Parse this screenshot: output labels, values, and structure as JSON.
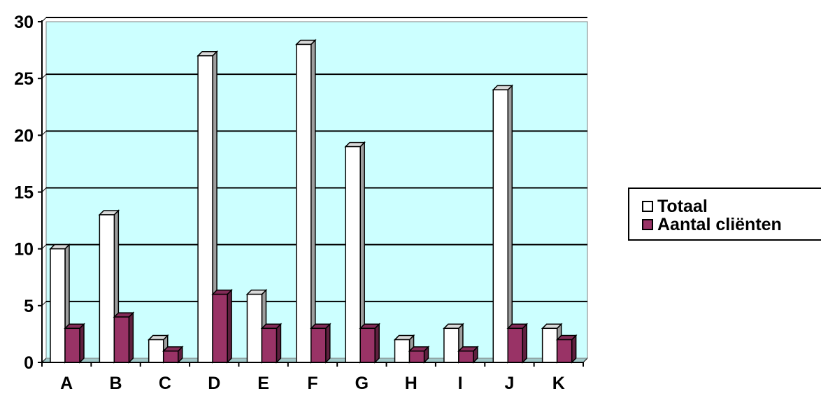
{
  "chart_data": {
    "type": "bar",
    "categories": [
      "A",
      "B",
      "C",
      "D",
      "E",
      "F",
      "G",
      "H",
      "I",
      "J",
      "K"
    ],
    "series": [
      {
        "name": "Totaal",
        "values": [
          10,
          13,
          2,
          27,
          6,
          28,
          19,
          2,
          3,
          24,
          3
        ],
        "color": "#ffffff"
      },
      {
        "name": "Aantal cliënten",
        "values": [
          3,
          4,
          1,
          6,
          3,
          3,
          3,
          1,
          1,
          3,
          2
        ],
        "color": "#993366"
      }
    ],
    "yticks": [
      0,
      5,
      10,
      15,
      20,
      25,
      30
    ],
    "ylim": [
      0,
      30
    ],
    "grid": true,
    "legend_position": "right",
    "plot_background": "#ccffff",
    "style": "3d-bar"
  }
}
